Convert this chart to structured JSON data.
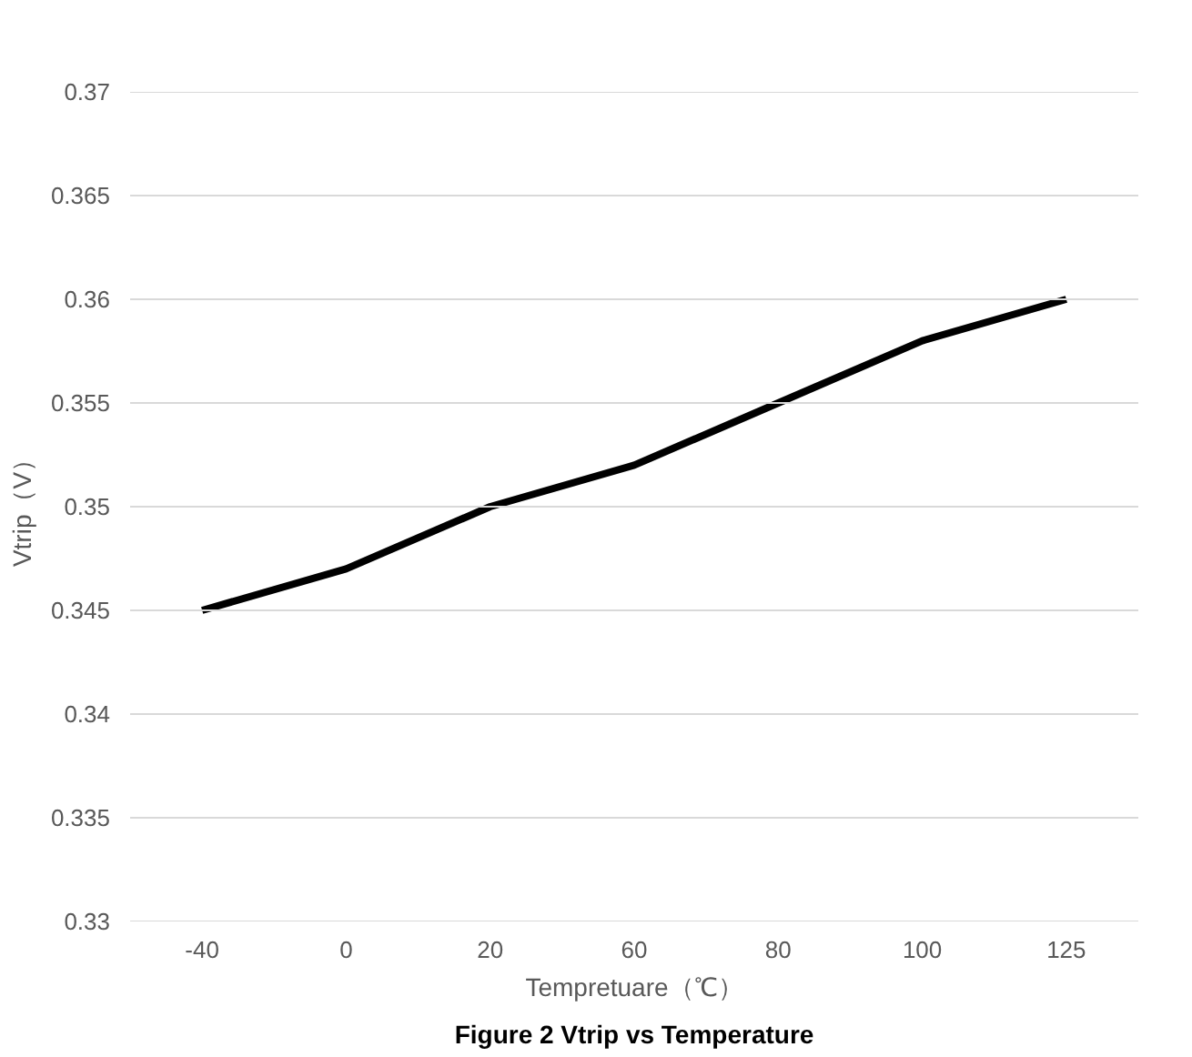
{
  "chart_data": {
    "type": "line",
    "xlabel": "Tempretuare（℃）",
    "ylabel": "Vtrip（V）",
    "categories": [
      "-40",
      "0",
      "20",
      "60",
      "80",
      "100",
      "125"
    ],
    "series": [
      {
        "color": "#000000",
        "values": [
          0.345,
          0.347,
          0.35,
          0.352,
          0.355,
          0.358,
          0.36
        ]
      }
    ],
    "ylim": [
      0.33,
      0.37
    ],
    "yticks": [
      0.33,
      0.335,
      0.34,
      0.345,
      0.35,
      0.355,
      0.36,
      0.365,
      0.37
    ],
    "grid": "y",
    "annotations": [
      "Figure 2 Vtrip vs Temperature"
    ]
  }
}
